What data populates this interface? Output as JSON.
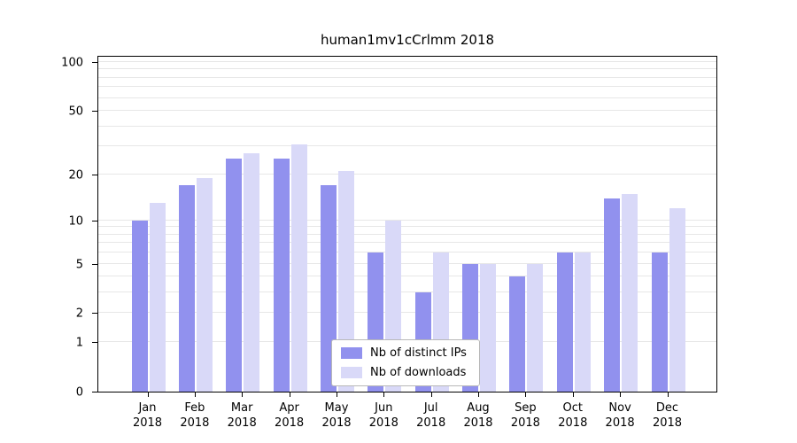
{
  "title": "human1mv1cCrlmm 2018",
  "colors": {
    "ips": "#9191ee",
    "downloads": "#d9d9f8",
    "grid": "#e7e7e7",
    "axis": "#000000",
    "legend_border": "#b8b8b8"
  },
  "chart_data": {
    "type": "bar",
    "title": "human1mv1cCrlmm 2018",
    "y_scale": "log10(1+v)",
    "categories": [
      "Jan",
      "Feb",
      "Mar",
      "Apr",
      "May",
      "Jun",
      "Jul",
      "Aug",
      "Sep",
      "Oct",
      "Nov",
      "Dec"
    ],
    "x_year": "2018",
    "series": [
      {
        "name": "Nb of distinct IPs",
        "values": [
          10,
          17,
          25,
          25,
          17,
          6,
          3,
          5,
          4,
          6,
          14,
          6
        ]
      },
      {
        "name": "Nb of downloads",
        "values": [
          13,
          19,
          27,
          31,
          21,
          10,
          6,
          5,
          5,
          6,
          15,
          12
        ]
      }
    ],
    "y_ticks": [
      0,
      1,
      2,
      5,
      10,
      20,
      50,
      100
    ],
    "y_gridlines": [
      1,
      2,
      3,
      4,
      5,
      6,
      7,
      8,
      9,
      10,
      20,
      30,
      40,
      50,
      60,
      70,
      80,
      90,
      100
    ],
    "ylim": [
      0,
      115
    ],
    "grid": "on",
    "legend_position": "bottom-center"
  }
}
